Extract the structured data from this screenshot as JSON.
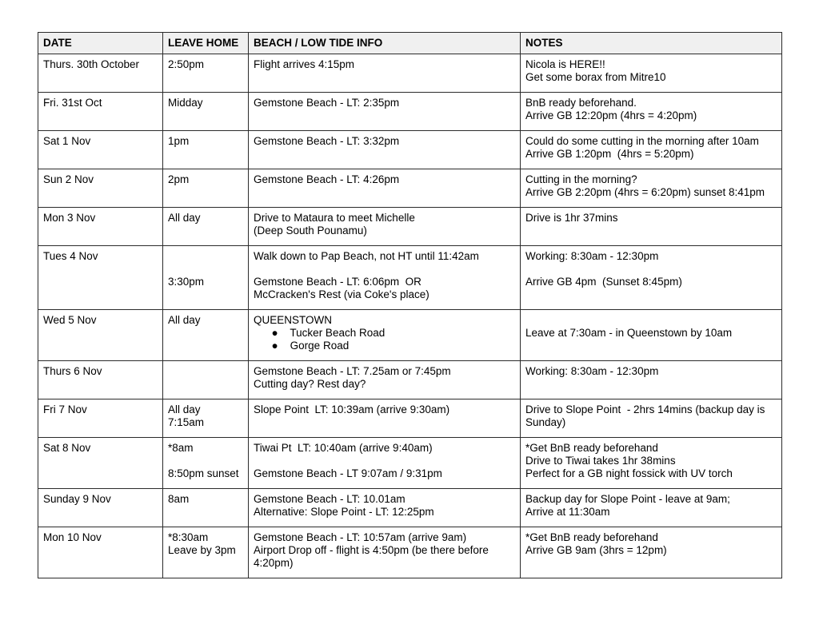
{
  "colors": {
    "header_background": "#f0f0f0",
    "border": "#2b2b2b",
    "text": "#000000",
    "page_background": "#ffffff"
  },
  "table": {
    "headers": [
      "DATE",
      "LEAVE HOME",
      "BEACH / LOW TIDE INFO",
      "NOTES"
    ],
    "rows": [
      [
        "Thurs. 30th October",
        "2:50pm",
        "Flight arrives 4:15pm",
        "Nicola is HERE!!\nGet some borax from Mitre10"
      ],
      [
        "Fri. 31st Oct",
        "Midday",
        "Gemstone Beach - LT: 2:35pm",
        "BnB ready beforehand.\nArrive GB 12:20pm (4hrs = 4:20pm)"
      ],
      [
        "Sat 1 Nov",
        "1pm",
        "Gemstone Beach - LT: 3:32pm",
        "Could do some cutting in the morning after 10am\nArrive GB 1:20pm  (4hrs = 5:20pm)"
      ],
      [
        "Sun 2 Nov",
        "2pm",
        "Gemstone Beach - LT: 4:26pm",
        "Cutting in the morning?\nArrive GB 2:20pm (4hrs = 6:20pm) sunset 8:41pm"
      ],
      [
        "Mon 3 Nov",
        "All day",
        "Drive to Mataura to meet Michelle\n(Deep South Pounamu)",
        "Drive is 1hr 37mins"
      ],
      [
        "Tues 4 Nov",
        "\n\n3:30pm",
        "Walk down to Pap Beach, not HT until 11:42am\n\nGemstone Beach - LT: 6:06pm  OR\nMcCracken's Rest (via Coke's place)",
        "Working: 8:30am - 12:30pm\n\nArrive GB 4pm  (Sunset 8:45pm)"
      ],
      [
        "Wed 5 Nov",
        "All day",
        "QUEENSTOWN\n      ●    Tucker Beach Road\n      ●    Gorge Road",
        "\nLeave at 7:30am - in Queenstown by 10am"
      ],
      [
        "Thurs 6 Nov",
        "",
        "Gemstone Beach - LT: 7.25am or 7:45pm\nCutting day? Rest day?",
        "Working: 8:30am - 12:30pm"
      ],
      [
        "Fri 7 Nov",
        "All day\n7:15am",
        "Slope Point  LT: 10:39am (arrive 9:30am)",
        "Drive to Slope Point  - 2hrs 14mins (backup day is\nSunday)"
      ],
      [
        "Sat 8 Nov",
        "*8am\n\n8:50pm sunset",
        "Tiwai Pt  LT: 10:40am (arrive 9:40am)\n\nGemstone Beach - LT 9:07am / 9:31pm",
        "*Get BnB ready beforehand\nDrive to Tiwai takes 1hr 38mins\nPerfect for a GB night fossick with UV torch"
      ],
      [
        "Sunday 9 Nov",
        "8am",
        "Gemstone Beach - LT: 10.01am\nAlternative: Slope Point - LT: 12:25pm",
        "Backup day for Slope Point - leave at 9am;\nArrive at 11:30am"
      ],
      [
        "Mon 10 Nov",
        "*8:30am\nLeave by 3pm",
        "Gemstone Beach - LT: 10:57am (arrive 9am)\nAirport Drop off - flight is 4:50pm (be there before\n4:20pm)",
        "*Get BnB ready beforehand\nArrive GB 9am (3hrs = 12pm)"
      ]
    ]
  }
}
